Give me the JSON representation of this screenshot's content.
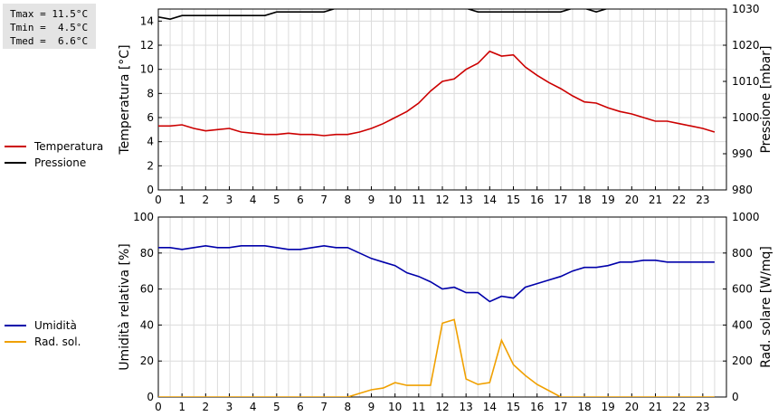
{
  "stats": {
    "tmax": "Tmax = 11.5°C",
    "tmin": "Tmin =  4.5°C",
    "tmed": "Tmed =  6.6°C"
  },
  "chart_data": [
    {
      "type": "line",
      "xlabel": "",
      "xlim": [
        0,
        24
      ],
      "x_ticks": [
        0,
        1,
        2,
        3,
        4,
        5,
        6,
        7,
        8,
        9,
        10,
        11,
        12,
        13,
        14,
        15,
        16,
        17,
        18,
        19,
        20,
        21,
        22,
        23
      ],
      "ylabel": "Temperatura [°C]",
      "ylim": [
        0,
        15
      ],
      "y_ticks": [
        0,
        2,
        4,
        6,
        8,
        10,
        12,
        14
      ],
      "y2label": "Pressione [mbar]",
      "y2lim": [
        980,
        1030
      ],
      "y2_ticks": [
        980,
        990,
        1000,
        1010,
        1020,
        1030
      ],
      "grid": true,
      "legend_position": "left",
      "series": [
        {
          "name": "Temperatura",
          "axis": "left",
          "color": "#cc0000",
          "x": [
            0,
            0.5,
            1,
            1.5,
            2,
            2.5,
            3,
            3.5,
            4,
            4.5,
            5,
            5.5,
            6,
            6.5,
            7,
            7.5,
            8,
            8.5,
            9,
            9.5,
            10,
            10.5,
            11,
            11.5,
            12,
            12.5,
            13,
            13.5,
            14,
            14.5,
            15,
            15.5,
            16,
            16.5,
            17,
            17.5,
            18,
            18.5,
            19,
            19.5,
            20,
            20.5,
            21,
            21.5,
            22,
            22.5,
            23,
            23.5
          ],
          "values": [
            5.3,
            5.3,
            5.4,
            5.1,
            4.9,
            5.0,
            5.1,
            4.8,
            4.7,
            4.6,
            4.6,
            4.7,
            4.6,
            4.6,
            4.5,
            4.6,
            4.6,
            4.8,
            5.1,
            5.5,
            6.0,
            6.5,
            7.2,
            8.2,
            9.0,
            9.2,
            10.0,
            10.5,
            11.5,
            11.1,
            11.2,
            10.2,
            9.5,
            8.9,
            8.4,
            7.8,
            7.3,
            7.2,
            6.8,
            6.5,
            6.3,
            6.0,
            5.7,
            5.7,
            5.5,
            5.3,
            5.1,
            4.8
          ]
        },
        {
          "name": "Pressione",
          "axis": "right",
          "color": "#000000",
          "x": [
            0,
            0.5,
            1,
            1.5,
            2,
            2.5,
            3,
            3.5,
            4,
            4.5,
            5,
            5.5,
            6,
            6.5,
            7,
            7.5,
            8,
            8.5,
            9,
            9.5,
            10,
            10.5,
            11,
            11.5,
            12,
            12.5,
            13,
            13.5,
            14,
            14.5,
            15,
            15.5,
            16,
            16.5,
            17,
            17.5,
            18,
            18.5,
            19,
            19.5,
            20,
            20.5,
            21,
            21.5,
            22,
            22.5,
            23,
            23.5
          ],
          "values": [
            1027.8,
            1027.2,
            1028.2,
            1028.2,
            1028.2,
            1028.2,
            1028.2,
            1028.2,
            1028.2,
            1028.2,
            1029.2,
            1029.2,
            1029.2,
            1029.2,
            1029.2,
            1030.2,
            1030.2,
            1030.2,
            1030.2,
            1030.2,
            1030.2,
            1030.2,
            1030.2,
            1030.2,
            1030.2,
            1030.2,
            1030.2,
            1029.2,
            1029.2,
            1029.2,
            1029.2,
            1029.2,
            1029.2,
            1029.2,
            1029.2,
            1030.2,
            1030.2,
            1029.2,
            1030.2,
            1030.2,
            1030.2,
            1030.2,
            1030.2,
            1030.2,
            1030.2,
            1030.2,
            1030.2,
            1030.2
          ]
        }
      ]
    },
    {
      "type": "line",
      "xlabel": "",
      "xlim": [
        0,
        24
      ],
      "x_ticks": [
        0,
        1,
        2,
        3,
        4,
        5,
        6,
        7,
        8,
        9,
        10,
        11,
        12,
        13,
        14,
        15,
        16,
        17,
        18,
        19,
        20,
        21,
        22,
        23
      ],
      "ylabel": "Umidità relativa [%]",
      "ylim": [
        0,
        100
      ],
      "y_ticks": [
        0,
        20,
        40,
        60,
        80,
        100
      ],
      "y2label": "Rad. solare [W/mq]",
      "y2lim": [
        0,
        1000
      ],
      "y2_ticks": [
        0,
        200,
        400,
        600,
        800,
        1000
      ],
      "grid": true,
      "legend_position": "left",
      "series": [
        {
          "name": "Umidità",
          "axis": "left",
          "color": "#0000aa",
          "x": [
            0,
            0.5,
            1,
            1.5,
            2,
            2.5,
            3,
            3.5,
            4,
            4.5,
            5,
            5.5,
            6,
            6.5,
            7,
            7.5,
            8,
            8.5,
            9,
            9.5,
            10,
            10.5,
            11,
            11.5,
            12,
            12.5,
            13,
            13.5,
            14,
            14.5,
            15,
            15.5,
            16,
            16.5,
            17,
            17.5,
            18,
            18.5,
            19,
            19.5,
            20,
            20.5,
            21,
            21.5,
            22,
            22.5,
            23,
            23.5
          ],
          "values": [
            83,
            83,
            82,
            83,
            84,
            83,
            83,
            84,
            84,
            84,
            83,
            82,
            82,
            83,
            84,
            83,
            83,
            80,
            77,
            75,
            73,
            69,
            67,
            64,
            60,
            61,
            58,
            58,
            53,
            56,
            55,
            61,
            63,
            65,
            67,
            70,
            72,
            72,
            73,
            75,
            75,
            76,
            76,
            75,
            75,
            75,
            75,
            75
          ]
        },
        {
          "name": "Rad. sol.",
          "axis": "right",
          "color": "#f0a000",
          "x": [
            0,
            0.5,
            1,
            1.5,
            2,
            2.5,
            3,
            3.5,
            4,
            4.5,
            5,
            5.5,
            6,
            6.5,
            7,
            7.5,
            8,
            8.5,
            9,
            9.5,
            10,
            10.5,
            11,
            11.5,
            12,
            12.5,
            13,
            13.5,
            14,
            14.5,
            15,
            15.5,
            16,
            16.5,
            17,
            17.5,
            18,
            18.5,
            19,
            19.5,
            20,
            20.5,
            21,
            21.5,
            22,
            22.5,
            23,
            23.5
          ],
          "values": [
            0,
            0,
            0,
            0,
            0,
            0,
            0,
            0,
            0,
            0,
            0,
            0,
            0,
            0,
            0,
            0,
            0,
            20,
            40,
            50,
            80,
            65,
            65,
            65,
            410,
            430,
            100,
            70,
            80,
            315,
            180,
            120,
            70,
            35,
            0,
            0,
            0,
            0,
            0,
            0,
            0,
            0,
            0,
            0,
            0,
            0,
            0,
            0
          ]
        }
      ]
    }
  ]
}
